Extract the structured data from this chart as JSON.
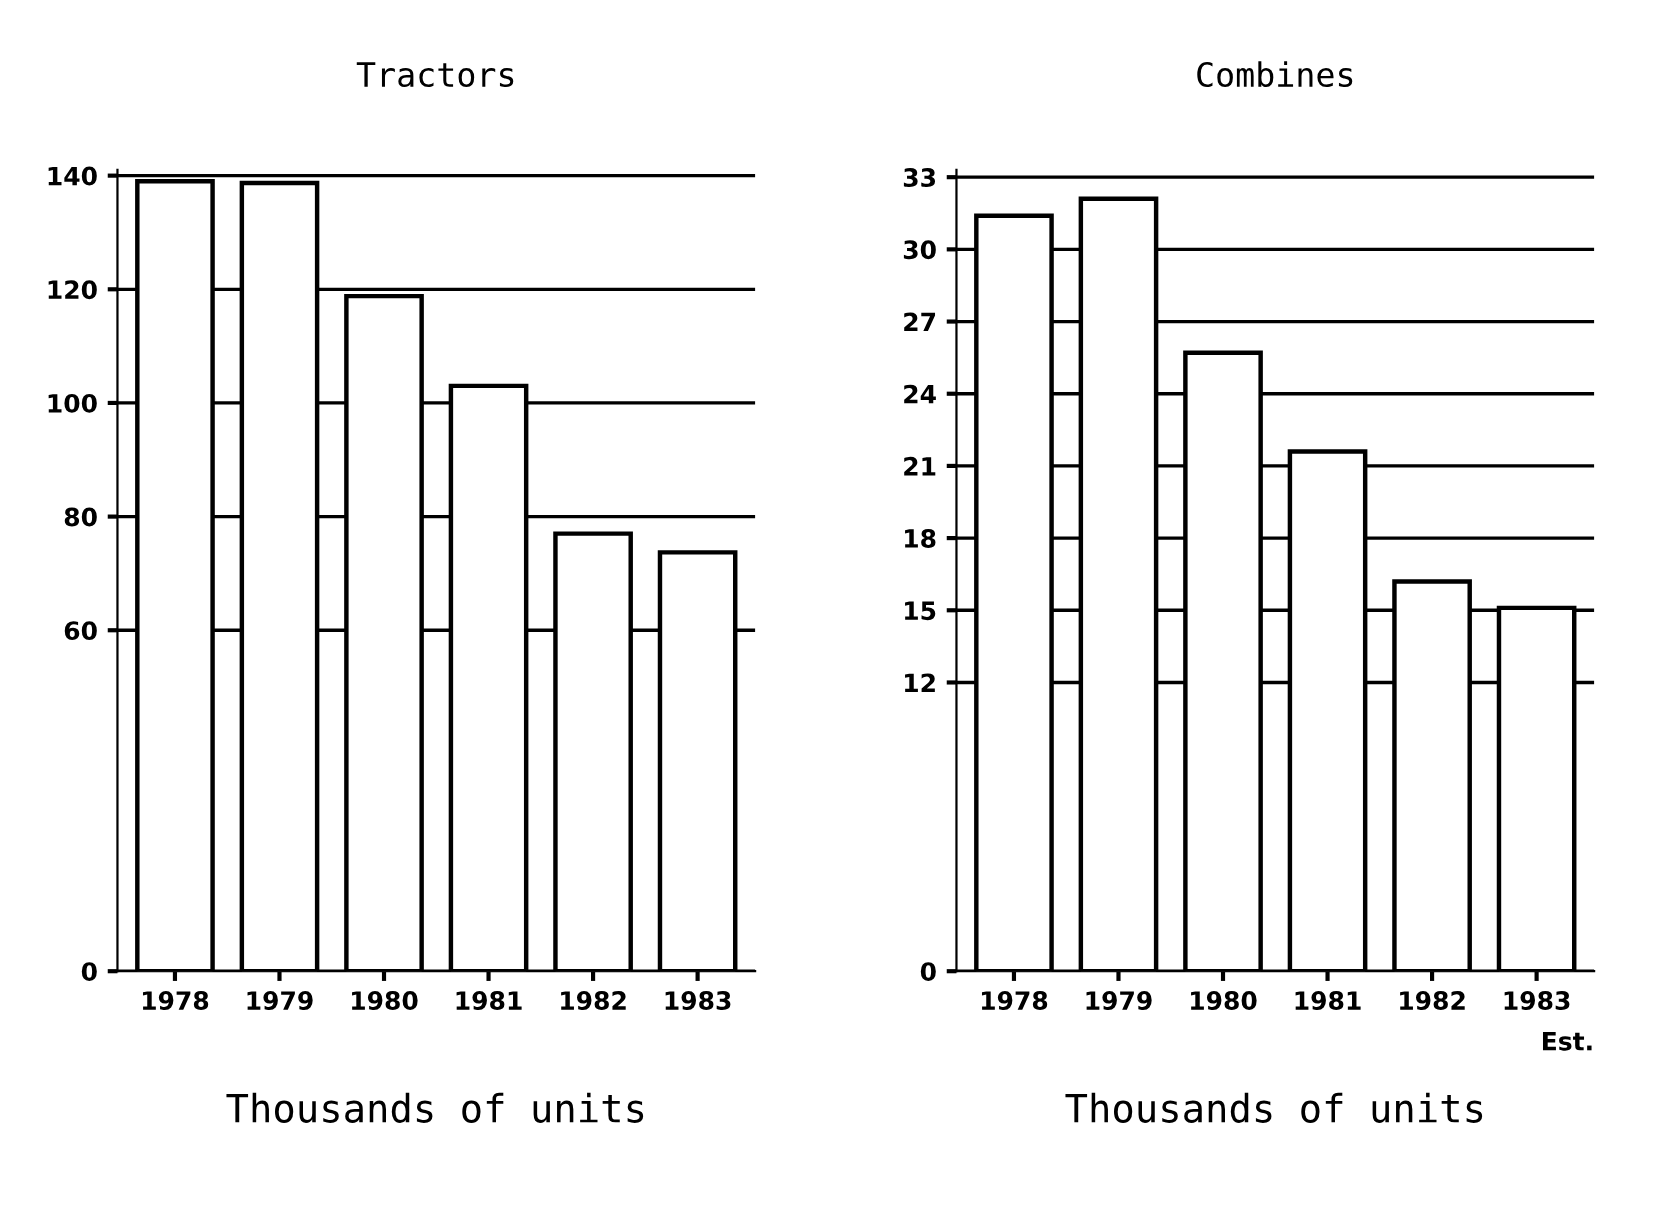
{
  "chart_data": [
    {
      "type": "bar",
      "title": "Tractors",
      "xlabel": "Thousands of units",
      "categories": [
        "1978",
        "1979",
        "1980",
        "1981",
        "1982",
        "1983"
      ],
      "values": [
        139,
        138.7,
        118.8,
        103,
        77,
        73.7
      ],
      "color": "#ffffff",
      "ylim": [
        0,
        141
      ],
      "yticks": [
        0,
        60,
        80,
        100,
        120,
        140
      ],
      "grid": "y"
    },
    {
      "type": "bar",
      "title": "Combines",
      "xlabel": "Thousands of units",
      "categories": [
        "1978",
        "1979",
        "1980",
        "1981",
        "1982",
        "1983"
      ],
      "values": [
        31.4,
        32.1,
        25.7,
        21.6,
        16.2,
        15.1
      ],
      "color": "#ffffff",
      "ylim": [
        0,
        33.3
      ],
      "yticks": [
        0,
        12,
        15,
        18,
        21,
        24,
        27,
        30,
        33
      ],
      "grid": "y",
      "annotations": [
        "Est."
      ]
    }
  ]
}
